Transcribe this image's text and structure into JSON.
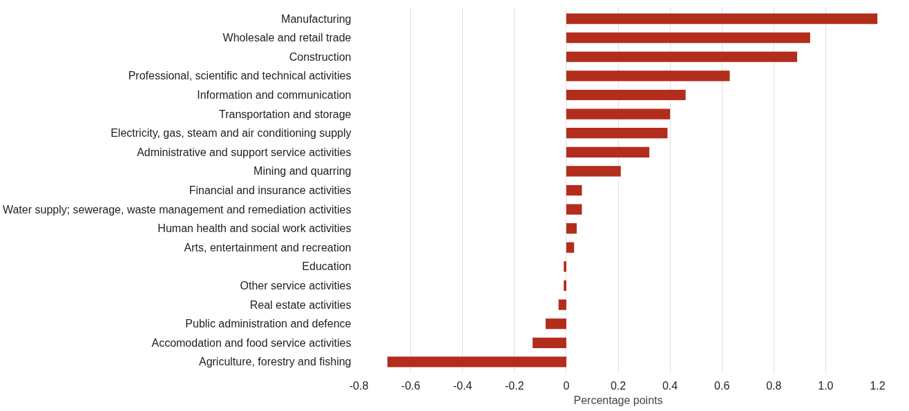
{
  "chart_data": {
    "type": "bar",
    "orientation": "horizontal",
    "xlabel": "Percentage points",
    "categories": [
      "Manufacturing",
      "Wholesale and retail trade",
      "Construction",
      "Professional, scientific and technical activities",
      "Information and communication",
      "Transportation and storage",
      "Electricity, gas, steam and air conditioning supply",
      "Administrative and support service activities",
      "Mining and quarring",
      "Financial and insurance activities",
      "Water supply; sewerage, waste management and remediation activities",
      "Human health and social work activities",
      "Arts, entertainment and recreation",
      "Education",
      "Other service activities",
      "Real estate activities",
      "Public administration and defence",
      "Accomodation and food service activities",
      "Agriculture, forestry and fishing"
    ],
    "values": [
      1.2,
      0.94,
      0.89,
      0.63,
      0.46,
      0.4,
      0.39,
      0.32,
      0.21,
      0.06,
      0.06,
      0.04,
      0.03,
      -0.01,
      -0.01,
      -0.03,
      -0.08,
      -0.13,
      -0.69
    ],
    "color": "#b22d1b",
    "xlim": [
      -0.8,
      1.2
    ],
    "xticks": [
      -0.8,
      -0.6,
      -0.4,
      -0.2,
      {
        "value": 0,
        "label": "0"
      },
      0.2,
      0.4,
      0.6,
      0.8,
      {
        "value": 1,
        "label": "1.0"
      },
      1.2
    ],
    "grid": "x"
  }
}
